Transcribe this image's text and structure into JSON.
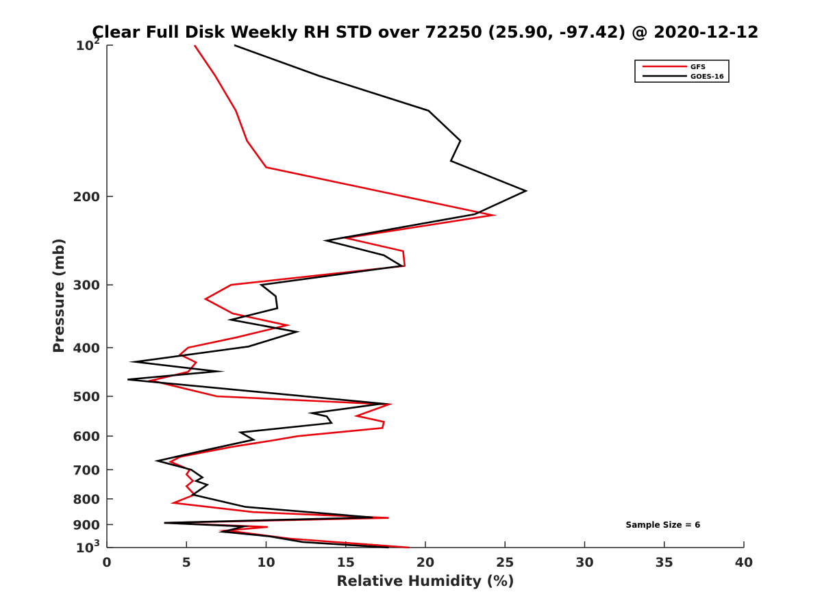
{
  "chart_data": {
    "type": "line",
    "title": "Clear Full Disk Weekly RH STD over 72250 (25.90, -97.42) @ 2020-12-12",
    "xlabel": "Relative Humidity (%)",
    "ylabel": "Pressure (mb)",
    "xlim": [
      0,
      40
    ],
    "ylim": [
      100,
      1000
    ],
    "yscale": "log",
    "y_reversed": true,
    "grid": false,
    "legend_position": "top-right",
    "x_ticks": [
      "0",
      "5",
      "10",
      "15",
      "20",
      "25",
      "30",
      "35",
      "40"
    ],
    "y_ticks": [
      {
        "value": 100,
        "base": "10",
        "exp": "2"
      },
      {
        "value": 200,
        "label": "200"
      },
      {
        "value": 300,
        "label": "300"
      },
      {
        "value": 400,
        "label": "400"
      },
      {
        "value": 500,
        "label": "500"
      },
      {
        "value": 600,
        "label": "600"
      },
      {
        "value": 700,
        "label": "700"
      },
      {
        "value": 800,
        "label": "800"
      },
      {
        "value": 900,
        "label": "900"
      },
      {
        "value": 1000,
        "base": "10",
        "exp": "3"
      }
    ],
    "annotation": "Sample Size = 6",
    "series": [
      {
        "name": "GFS",
        "color": "#e8000b",
        "points": [
          [
            5.5,
            100
          ],
          [
            6.8,
            115
          ],
          [
            8.1,
            135
          ],
          [
            8.8,
            155
          ],
          [
            10,
            175
          ],
          [
            17,
            195
          ],
          [
            24.2,
            218
          ],
          [
            15,
            242
          ],
          [
            18.6,
            257
          ],
          [
            18.7,
            275
          ],
          [
            7.8,
            300
          ],
          [
            6.2,
            320
          ],
          [
            7.9,
            342
          ],
          [
            11.3,
            361
          ],
          [
            8.1,
            382
          ],
          [
            5.1,
            400
          ],
          [
            4.6,
            413
          ],
          [
            5.6,
            428
          ],
          [
            5.1,
            447
          ],
          [
            2.8,
            465
          ],
          [
            6.9,
            500
          ],
          [
            17.7,
            519
          ],
          [
            15.7,
            547
          ],
          [
            17.4,
            562
          ],
          [
            17.3,
            578
          ],
          [
            12,
            600
          ],
          [
            10.4,
            612
          ],
          [
            7.9,
            630
          ],
          [
            6.2,
            645
          ],
          [
            4.6,
            660
          ],
          [
            4,
            675
          ],
          [
            5.2,
            700
          ],
          [
            5,
            715
          ],
          [
            5.4,
            737
          ],
          [
            5,
            755
          ],
          [
            5.5,
            785
          ],
          [
            4.2,
            815
          ],
          [
            9.2,
            850
          ],
          [
            17.7,
            873
          ],
          [
            3.6,
            893
          ],
          [
            10.1,
            910
          ],
          [
            7.5,
            925
          ],
          [
            11.5,
            960
          ],
          [
            19,
            1000
          ]
        ]
      },
      {
        "name": "GOES-16",
        "color": "#000000",
        "points": [
          [
            8,
            100
          ],
          [
            13.3,
            115
          ],
          [
            20.2,
            135
          ],
          [
            22.2,
            155
          ],
          [
            21.6,
            170
          ],
          [
            26.3,
            195
          ],
          [
            23.1,
            217
          ],
          [
            13.8,
            245
          ],
          [
            17.4,
            262
          ],
          [
            18.5,
            275
          ],
          [
            9.7,
            300
          ],
          [
            10.6,
            316
          ],
          [
            10.7,
            334
          ],
          [
            7.8,
            352
          ],
          [
            11.9,
            372
          ],
          [
            8.9,
            398
          ],
          [
            1.8,
            427
          ],
          [
            6.9,
            446
          ],
          [
            1.3,
            463
          ],
          [
            17.3,
            517
          ],
          [
            12.9,
            540
          ],
          [
            13.8,
            548
          ],
          [
            14.1,
            565
          ],
          [
            8.4,
            590
          ],
          [
            9.2,
            610
          ],
          [
            6.2,
            640
          ],
          [
            3.2,
            672
          ],
          [
            5.3,
            700
          ],
          [
            6,
            725
          ],
          [
            5.6,
            737
          ],
          [
            6.3,
            750
          ],
          [
            5.4,
            785
          ],
          [
            8.7,
            830
          ],
          [
            16.7,
            871
          ],
          [
            3.6,
            893
          ],
          [
            8.6,
            908
          ],
          [
            7.3,
            930
          ],
          [
            10.2,
            950
          ],
          [
            12.3,
            975
          ],
          [
            17.7,
            1000
          ]
        ]
      }
    ]
  }
}
